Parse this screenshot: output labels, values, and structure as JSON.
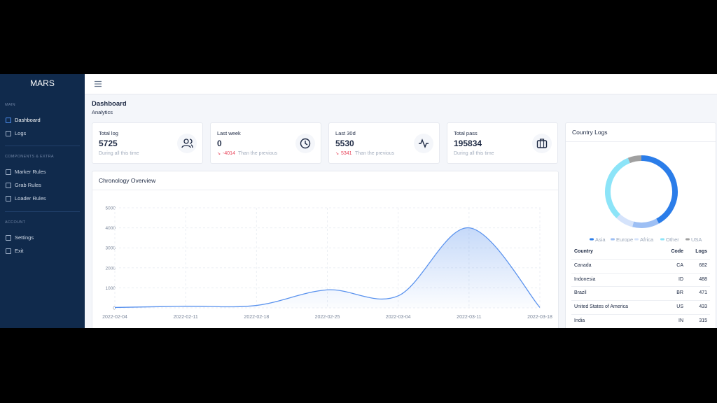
{
  "sidebar": {
    "brand": "MARS",
    "sections": [
      {
        "label": "MAIN",
        "items": [
          "Dashboard",
          "Logs"
        ]
      },
      {
        "label": "COMPONENTS & EXTRA",
        "items": [
          "Marker Rules",
          "Grab Rules",
          "Loader Rules"
        ]
      },
      {
        "label": "ACCOUNT",
        "items": [
          "Settings",
          "Exit"
        ]
      }
    ]
  },
  "header": {
    "title": "Dashboard",
    "subtitle": "Analytics"
  },
  "stats": [
    {
      "label": "Total log",
      "value": 5725,
      "note": "During all this time"
    },
    {
      "label": "Last week",
      "value": 0,
      "change": -4014,
      "note": "Than the previous"
    },
    {
      "label": "Last 30d",
      "value": 5530,
      "change": 5341,
      "note": "Than the previous"
    },
    {
      "label": "Total pass",
      "value": 195834,
      "note": "During all this time"
    }
  ],
  "chronology": {
    "type": "line",
    "title": "Chronology Overview",
    "x": [
      "2022-02-04",
      "2022-02-11",
      "2022-02-18",
      "2022-02-25",
      "2022-03-04",
      "2022-03-11",
      "2022-03-18"
    ],
    "values": [
      20,
      80,
      120,
      900,
      600,
      4000,
      20
    ],
    "ylim": [
      0,
      5000
    ],
    "yticks": [
      0,
      1000,
      2000,
      3000,
      4000,
      5000
    ],
    "color": "#5b93ee",
    "grid": true
  },
  "country_logs": {
    "title": "Country Logs",
    "donut": {
      "type": "donut",
      "categories": [
        "Asia",
        "Europe",
        "Africa",
        "Other",
        "USA"
      ],
      "values": [
        42,
        12,
        8,
        32,
        6
      ],
      "colors": [
        "#2b7de9",
        "#9dbff4",
        "#d5e3fb",
        "#8ce4f8",
        "#a0a0a0"
      ]
    },
    "table": {
      "columns": [
        "Country",
        "Code",
        "Logs"
      ],
      "rows": [
        [
          "Canada",
          "CA",
          682
        ],
        [
          "Indonesia",
          "ID",
          488
        ],
        [
          "Brazil",
          "BR",
          471
        ],
        [
          "United States of America",
          "US",
          433
        ],
        [
          "India",
          "IN",
          315
        ]
      ]
    }
  }
}
